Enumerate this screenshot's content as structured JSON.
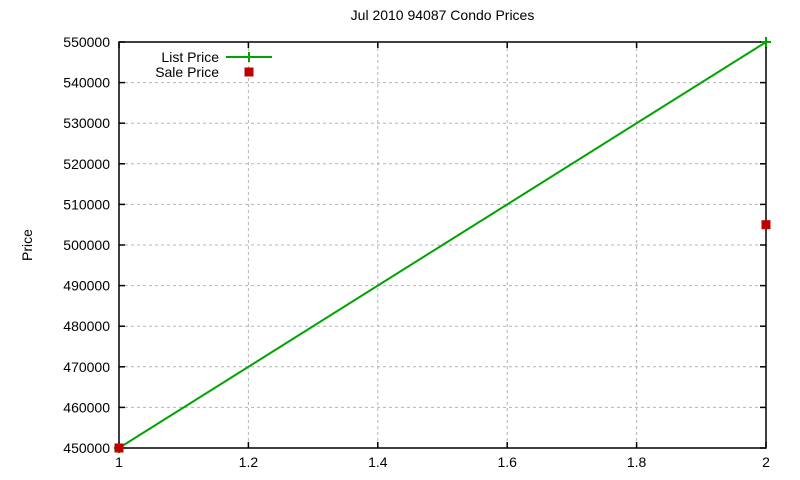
{
  "window": {
    "background": "#ffffff"
  },
  "chart_data": {
    "type": "line",
    "title": "Jul 2010 94087 Condo Prices",
    "xlabel": "",
    "ylabel": "Price",
    "xlim": [
      1,
      2
    ],
    "ylim": [
      450000,
      550000
    ],
    "xticks": [
      1,
      1.2,
      1.4,
      1.6,
      1.8,
      2
    ],
    "xtick_labels": [
      "1",
      "1.2",
      "1.4",
      "1.6",
      "1.8",
      "2"
    ],
    "yticks": [
      450000,
      460000,
      470000,
      480000,
      490000,
      500000,
      510000,
      520000,
      530000,
      540000,
      550000
    ],
    "ytick_labels": [
      "450000",
      "460000",
      "470000",
      "480000",
      "490000",
      "500000",
      "510000",
      "520000",
      "530000",
      "540000",
      "550000"
    ],
    "grid": true,
    "grid_color": "#b4b4b4",
    "axis_color": "#000000",
    "legend_position": "top-left-inside",
    "series": [
      {
        "name": "List Price",
        "type": "line",
        "marker": "plus",
        "color": "#00a400",
        "x": [
          1,
          2
        ],
        "y": [
          450000,
          550000
        ]
      },
      {
        "name": "Sale Price",
        "type": "scatter",
        "marker": "square",
        "color": "#c00000",
        "x": [
          1,
          2
        ],
        "y": [
          450000,
          505000
        ]
      }
    ]
  }
}
